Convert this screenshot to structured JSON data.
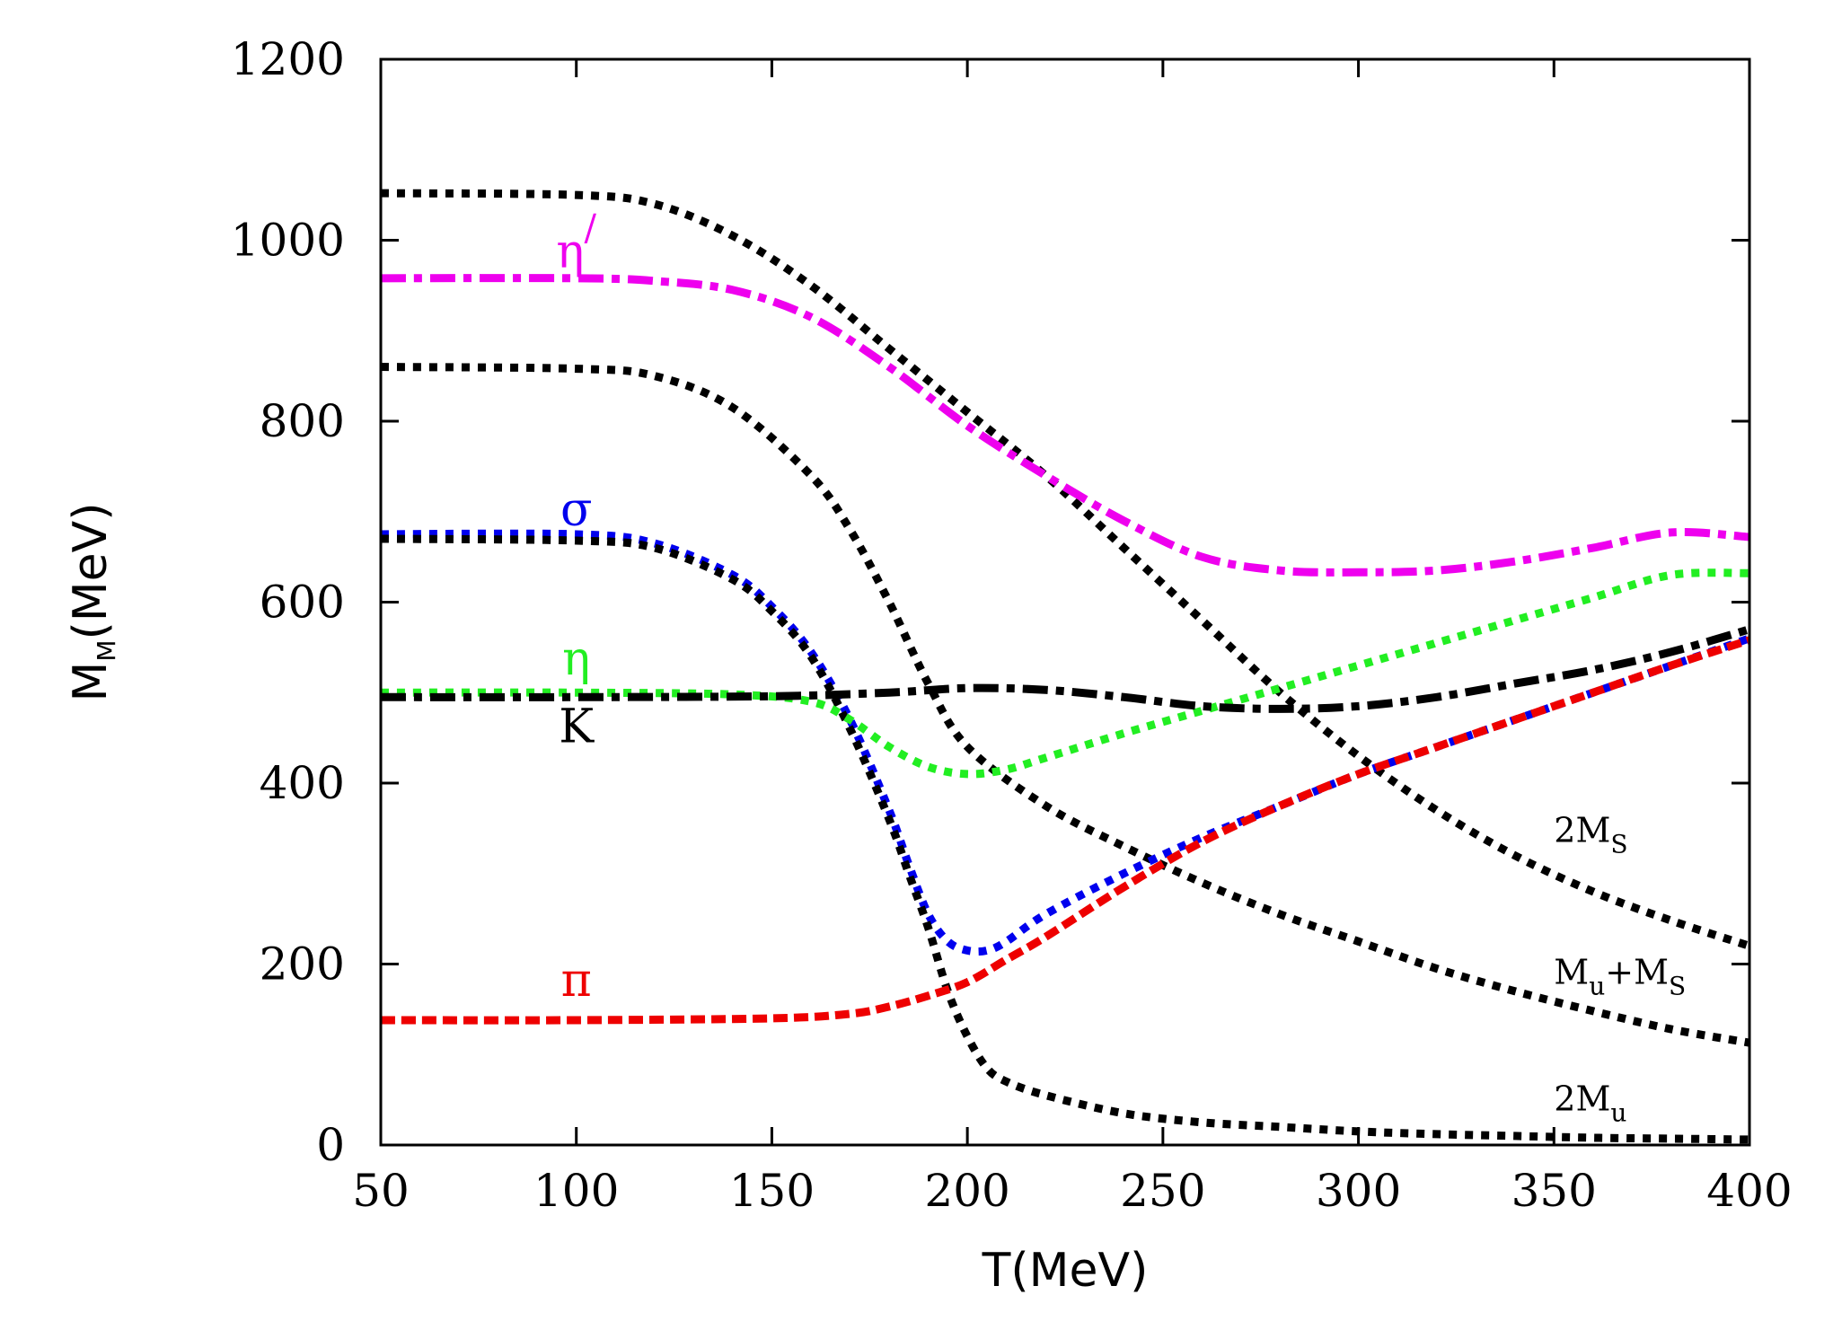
{
  "chart_data": {
    "type": "line",
    "title": "",
    "xlabel": "T(MeV)",
    "ylabel": {
      "main": "M",
      "sub": "M",
      "rest": "(MeV)"
    },
    "xlim": [
      50,
      400
    ],
    "ylim": [
      0,
      1200
    ],
    "xticks": [
      50,
      100,
      150,
      200,
      250,
      300,
      350,
      400
    ],
    "yticks": [
      0,
      200,
      400,
      600,
      800,
      1000,
      1200
    ],
    "grid": false,
    "series": [
      {
        "name": "2Ms",
        "color": "#000000",
        "style": "dotted",
        "x": [
          50,
          100,
          120,
          140,
          160,
          180,
          200,
          220,
          240,
          260,
          280,
          300,
          320,
          340,
          360,
          380,
          400
        ],
        "y": [
          1052,
          1050,
          1040,
          1005,
          950,
          880,
          810,
          740,
          660,
          580,
          500,
          430,
          370,
          320,
          280,
          248,
          220
        ]
      },
      {
        "name": "eta_prime",
        "color": "#ee00ee",
        "style": "dashdot",
        "x": [
          50,
          100,
          120,
          140,
          160,
          180,
          200,
          220,
          240,
          260,
          280,
          300,
          320,
          340,
          360,
          380,
          400
        ],
        "y": [
          958,
          958,
          955,
          945,
          915,
          860,
          795,
          740,
          690,
          650,
          635,
          633,
          635,
          645,
          660,
          677,
          672
        ]
      },
      {
        "name": "Mu+Ms",
        "color": "#000000",
        "style": "dotted",
        "x": [
          50,
          100,
          120,
          140,
          160,
          170,
          180,
          190,
          200,
          220,
          240,
          260,
          280,
          300,
          320,
          340,
          360,
          380,
          400
        ],
        "y": [
          860,
          858,
          850,
          815,
          740,
          680,
          600,
          510,
          440,
          375,
          330,
          290,
          255,
          225,
          195,
          170,
          148,
          128,
          113
        ]
      },
      {
        "name": "sigma",
        "color": "#0000ee",
        "style": "dotted",
        "x": [
          50,
          100,
          120,
          140,
          150,
          160,
          170,
          180,
          185,
          190,
          195,
          200,
          205,
          210,
          220,
          240,
          260,
          280,
          300,
          320,
          340,
          360,
          380,
          400
        ],
        "y": [
          675,
          675,
          665,
          630,
          595,
          545,
          470,
          370,
          310,
          255,
          225,
          215,
          215,
          225,
          255,
          300,
          340,
          375,
          410,
          440,
          470,
          500,
          530,
          560
        ]
      },
      {
        "name": "2Mu",
        "color": "#000000",
        "style": "dotted",
        "x": [
          50,
          100,
          120,
          140,
          150,
          160,
          170,
          180,
          185,
          190,
          195,
          200,
          205,
          210,
          220,
          240,
          260,
          280,
          300,
          320,
          340,
          360,
          380,
          400
        ],
        "y": [
          670,
          668,
          660,
          625,
          590,
          540,
          460,
          360,
          300,
          240,
          170,
          120,
          85,
          70,
          55,
          35,
          25,
          20,
          15,
          12,
          10,
          8,
          7,
          6
        ]
      },
      {
        "name": "eta",
        "color": "#22ee22",
        "style": "dotted",
        "x": [
          50,
          100,
          140,
          160,
          170,
          180,
          190,
          200,
          210,
          220,
          240,
          260,
          280,
          300,
          320,
          340,
          360,
          380,
          400
        ],
        "y": [
          500,
          500,
          498,
          490,
          470,
          440,
          418,
          410,
          415,
          428,
          455,
          480,
          505,
          530,
          555,
          580,
          605,
          630,
          632
        ]
      },
      {
        "name": "K",
        "color": "#000000",
        "style": "dashdot",
        "x": [
          50,
          100,
          150,
          180,
          200,
          220,
          240,
          260,
          280,
          300,
          320,
          340,
          360,
          380,
          400
        ],
        "y": [
          495,
          495,
          496,
          500,
          505,
          503,
          495,
          485,
          482,
          485,
          495,
          510,
          525,
          545,
          570
        ]
      },
      {
        "name": "pi",
        "color": "#ee0000",
        "style": "dashed",
        "x": [
          50,
          100,
          150,
          170,
          180,
          190,
          200,
          210,
          220,
          240,
          260,
          280,
          300,
          320,
          340,
          360,
          380,
          400
        ],
        "y": [
          138,
          138,
          140,
          145,
          153,
          165,
          180,
          205,
          230,
          285,
          335,
          375,
          410,
          440,
          470,
          500,
          530,
          558
        ]
      }
    ],
    "labels": [
      {
        "name": "eta-prime-label",
        "text": "η",
        "sup": "/",
        "color": "#ee00ee",
        "x": 100,
        "y": 970
      },
      {
        "name": "sigma-label",
        "text": "σ",
        "color": "#0000ee",
        "x": 100,
        "y": 685
      },
      {
        "name": "eta-label",
        "text": "η",
        "color": "#22ee22",
        "x": 100,
        "y": 520
      },
      {
        "name": "kaon-label",
        "text": "K",
        "color": "#000000",
        "x": 100,
        "y": 445
      },
      {
        "name": "pion-label",
        "text": "π",
        "color": "#ee0000",
        "x": 100,
        "y": 165
      }
    ],
    "annotations": [
      {
        "name": "2Ms-label",
        "main": "2M",
        "sub": "S",
        "x": 350,
        "y": 335
      },
      {
        "name": "MuMs-label",
        "main": "M",
        "sub": "u",
        "mid": "+M",
        "sub2": "S",
        "x": 350,
        "y": 178
      },
      {
        "name": "2Mu-label",
        "main": "2M",
        "sub": "u",
        "x": 350,
        "y": 38
      }
    ]
  }
}
